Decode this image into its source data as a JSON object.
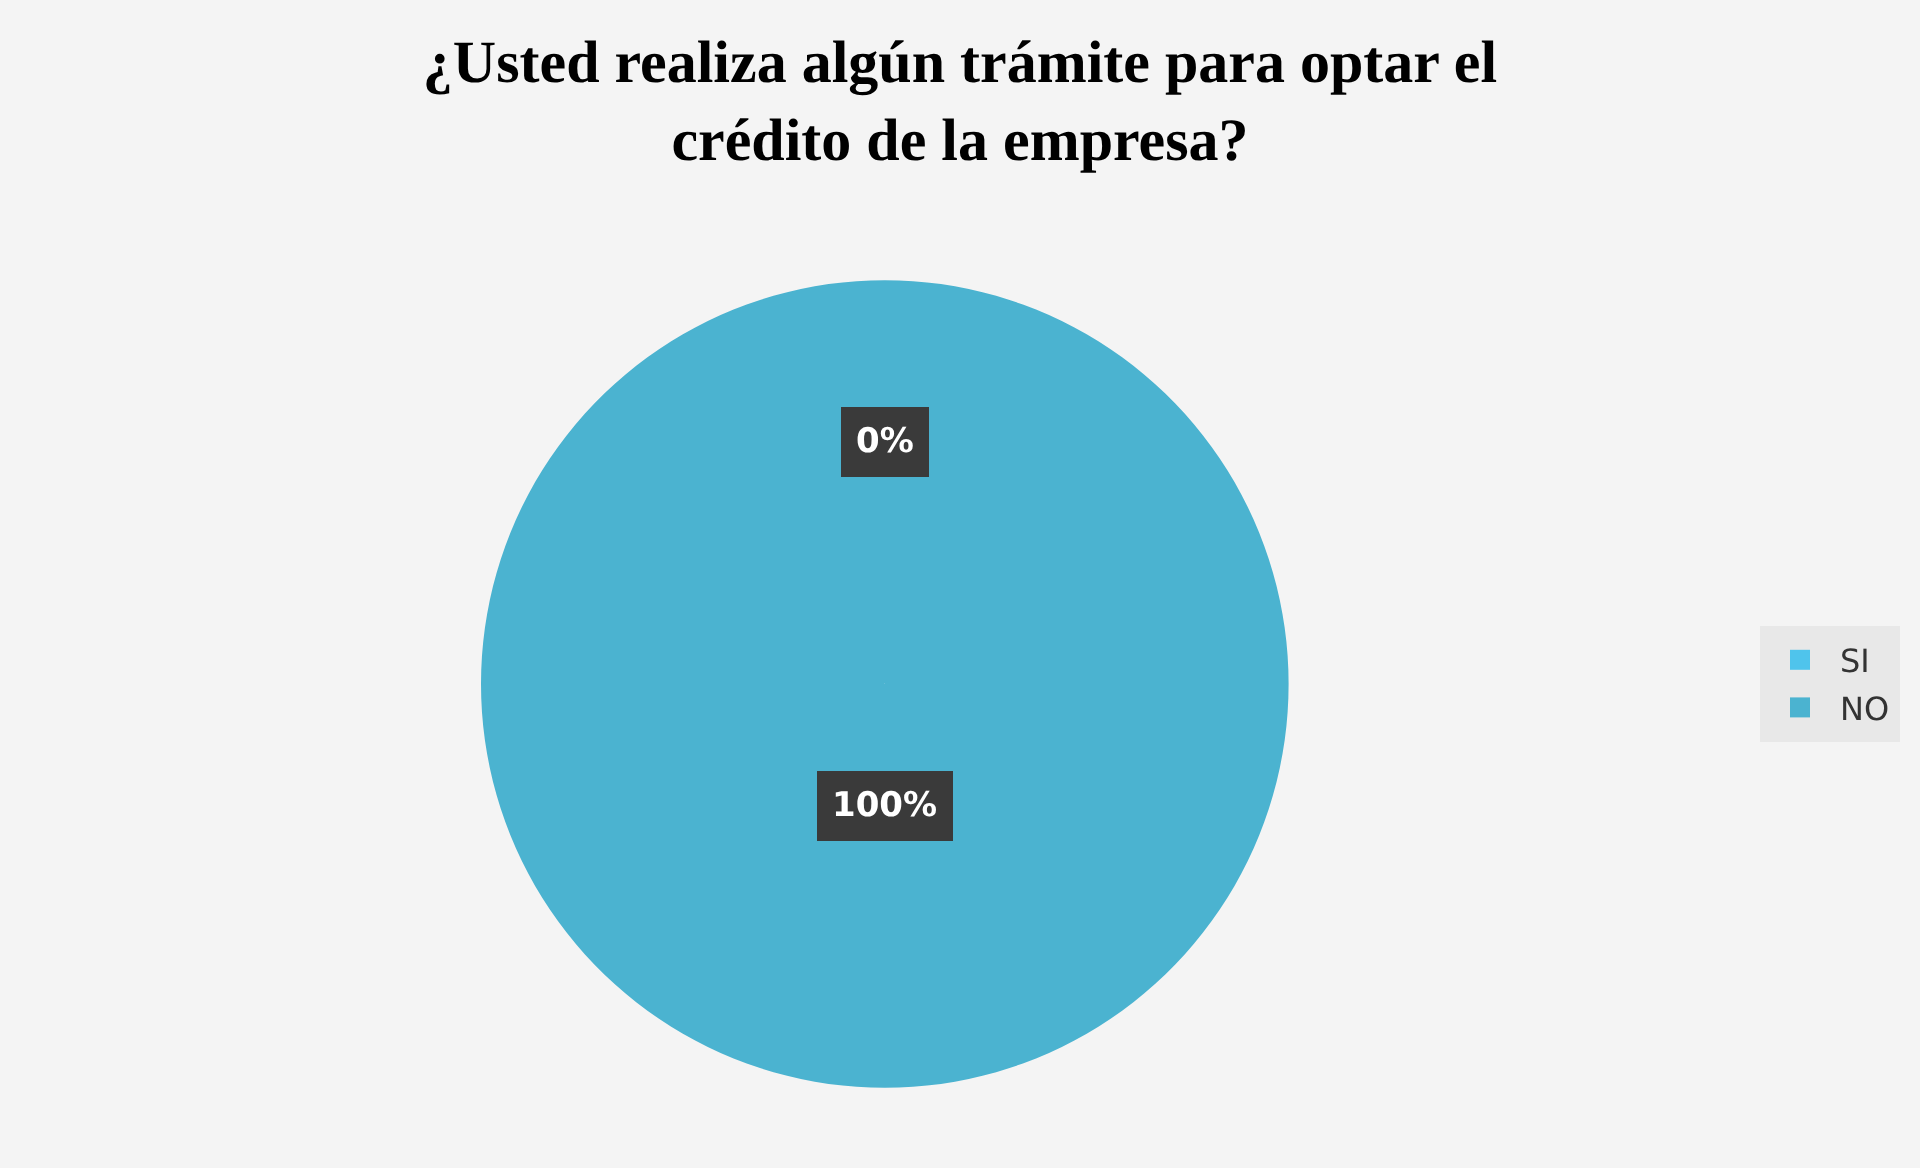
{
  "chart_data": {
    "type": "pie",
    "title": "¿Usted realiza algún trámite para optar el crédito de la empresa?",
    "categories": [
      "SI",
      "NO"
    ],
    "values": [
      0,
      100
    ],
    "colors": [
      "#4fc4ec",
      "#4bb3d0"
    ],
    "value_labels": [
      "0%",
      "100%"
    ],
    "legend": "right"
  }
}
